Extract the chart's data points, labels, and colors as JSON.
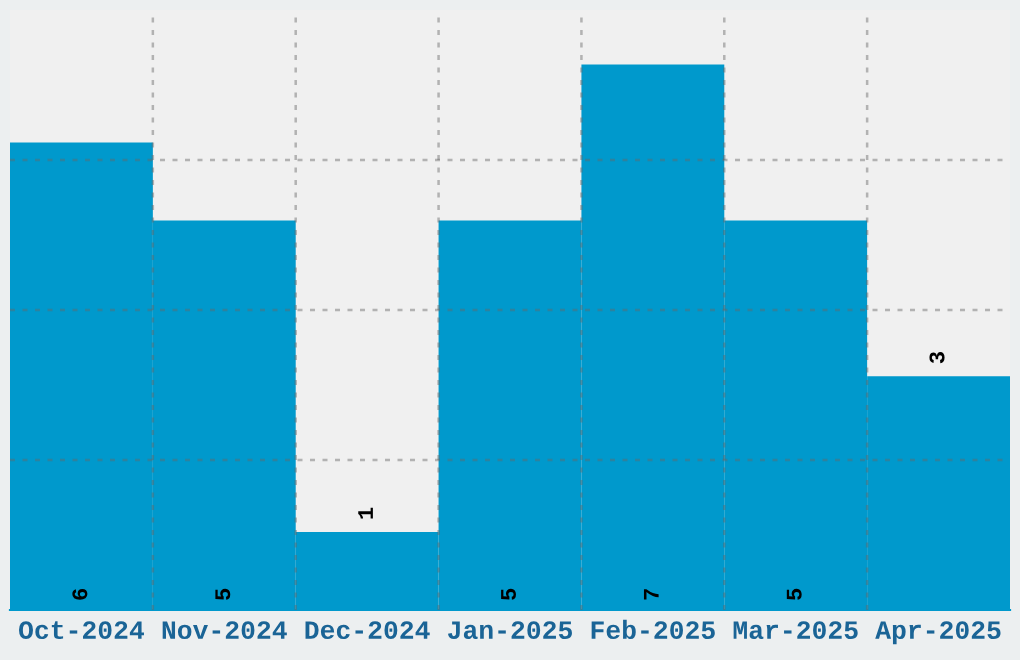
{
  "chart_data": {
    "type": "bar",
    "categories": [
      "Oct-2024",
      "Nov-2024",
      "Dec-2024",
      "Jan-2025",
      "Feb-2025",
      "Mar-2025",
      "Apr-2025"
    ],
    "values": [
      6,
      5,
      1,
      5,
      7,
      5,
      3
    ],
    "color": "#0099cc",
    "ylim": [
      0,
      7.7
    ],
    "yticks": [
      {
        "value": 1.925,
        "label": null
      },
      {
        "value": 3.85,
        "label": null
      },
      {
        "value": 5.775,
        "label": null
      }
    ],
    "tick_labels": "x",
    "grid": true,
    "data_labels": true
  }
}
